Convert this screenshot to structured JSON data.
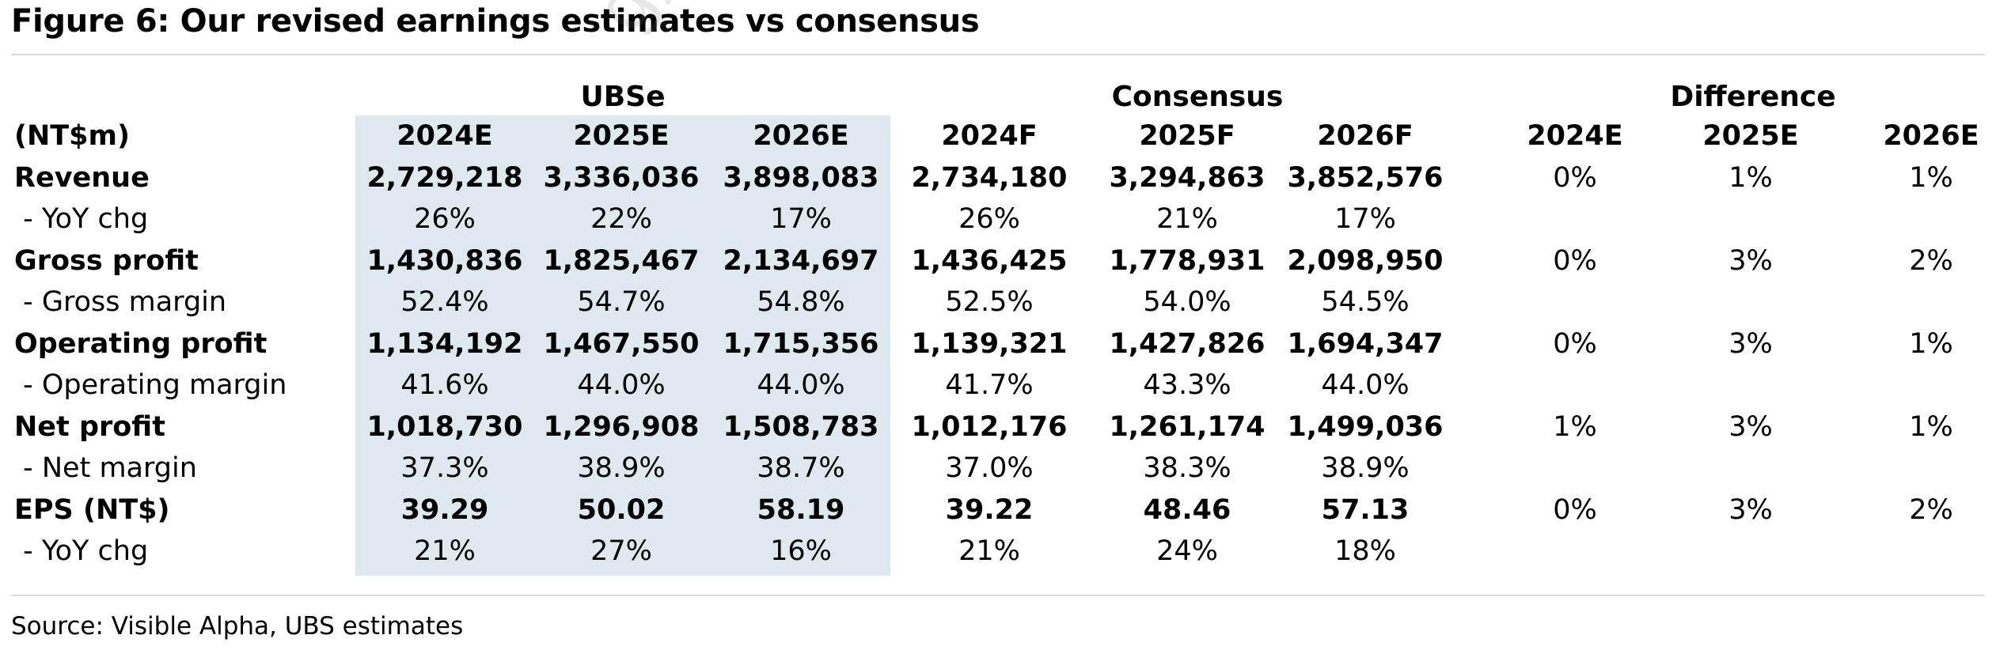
{
  "title": "Figure 6: Our revised earnings estimates vs consensus",
  "watermark": "gyu@",
  "groups": {
    "ubse": "UBSe",
    "consensus": "Consensus",
    "difference": "Difference"
  },
  "unit_label": "(NT$m)",
  "columns": [
    "2024E",
    "2025E",
    "2026E",
    "2024F",
    "2025F",
    "2026F",
    "2024E",
    "2025E",
    "2026E"
  ],
  "rows": [
    {
      "label": "Revenue",
      "bold": true,
      "values": [
        "2,729,218",
        "3,336,036",
        "3,898,083",
        "2,734,180",
        "3,294,863",
        "3,852,576",
        "0%",
        "1%",
        "1%"
      ]
    },
    {
      "label": " - YoY chg",
      "bold": false,
      "values": [
        "26%",
        "22%",
        "17%",
        "26%",
        "21%",
        "17%",
        "",
        "",
        ""
      ]
    },
    {
      "label": "Gross profit",
      "bold": true,
      "values": [
        "1,430,836",
        "1,825,467",
        "2,134,697",
        "1,436,425",
        "1,778,931",
        "2,098,950",
        "0%",
        "3%",
        "2%"
      ]
    },
    {
      "label": " - Gross margin",
      "bold": false,
      "values": [
        "52.4%",
        "54.7%",
        "54.8%",
        "52.5%",
        "54.0%",
        "54.5%",
        "",
        "",
        ""
      ]
    },
    {
      "label": "Operating profit",
      "bold": true,
      "values": [
        "1,134,192",
        "1,467,550",
        "1,715,356",
        "1,139,321",
        "1,427,826",
        "1,694,347",
        "0%",
        "3%",
        "1%"
      ]
    },
    {
      "label": " - Operating margin",
      "bold": false,
      "values": [
        "41.6%",
        "44.0%",
        "44.0%",
        "41.7%",
        "43.3%",
        "44.0%",
        "",
        "",
        ""
      ]
    },
    {
      "label": "Net profit",
      "bold": true,
      "values": [
        "1,018,730",
        "1,296,908",
        "1,508,783",
        "1,012,176",
        "1,261,174",
        "1,499,036",
        "1%",
        "3%",
        "1%"
      ]
    },
    {
      "label": " - Net margin",
      "bold": false,
      "values": [
        "37.3%",
        "38.9%",
        "38.7%",
        "37.0%",
        "38.3%",
        "38.9%",
        "",
        "",
        ""
      ]
    },
    {
      "label": "EPS (NT$)",
      "bold": true,
      "values": [
        "39.29",
        "50.02",
        "58.19",
        "39.22",
        "48.46",
        "57.13",
        "0%",
        "3%",
        "2%"
      ]
    },
    {
      "label": " - YoY chg",
      "bold": false,
      "values": [
        "21%",
        "27%",
        "16%",
        "21%",
        "24%",
        "18%",
        "",
        "",
        ""
      ]
    }
  ],
  "source": "Source: Visible Alpha, UBS estimates",
  "colors": {
    "shade": "#dde8ef",
    "rule": "#d9d9d9"
  }
}
